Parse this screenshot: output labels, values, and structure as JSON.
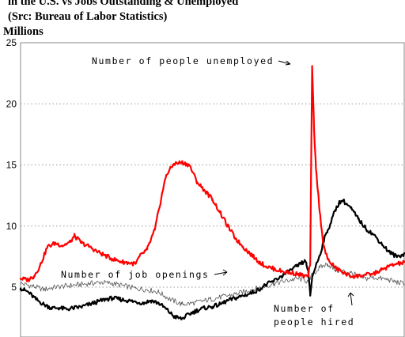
{
  "chart_data": {
    "type": "line",
    "title_lines": [
      "in the U.S. vs Jobs Outstanding & Unemployed",
      " (Src: Bureau of Labor Statistics)"
    ],
    "ylabel": "Millions",
    "ylim": [
      2,
      25
    ],
    "yticks": [
      5,
      10,
      15,
      20,
      25
    ],
    "grid": "horizontal-dotted",
    "annotations": [
      "Number of people unemployed",
      "Number of job openings",
      "Number of",
      "people hired"
    ],
    "series": [
      {
        "key": "unemployed",
        "color": "#ff0000",
        "x": [
          0.0,
          0.02,
          0.035,
          0.05,
          0.07,
          0.09,
          0.11,
          0.13,
          0.14,
          0.16,
          0.18,
          0.2,
          0.22,
          0.24,
          0.26,
          0.28,
          0.3,
          0.31,
          0.33,
          0.35,
          0.37,
          0.38,
          0.4,
          0.42,
          0.44,
          0.46,
          0.48,
          0.5,
          0.52,
          0.54,
          0.56,
          0.58,
          0.6,
          0.62,
          0.64,
          0.66,
          0.68,
          0.7,
          0.72,
          0.74,
          0.75,
          0.755,
          0.76,
          0.765,
          0.77,
          0.78,
          0.79,
          0.8,
          0.82,
          0.84,
          0.86,
          0.88,
          0.9,
          0.92,
          0.94,
          0.96,
          0.98,
          1.0
        ],
        "values": [
          5.7,
          5.6,
          5.9,
          6.7,
          8.3,
          8.6,
          8.4,
          8.7,
          9.2,
          8.6,
          8.3,
          7.9,
          7.6,
          7.3,
          7.1,
          7.0,
          6.9,
          7.5,
          8.1,
          9.7,
          12.8,
          14.2,
          15.1,
          15.2,
          15.0,
          13.6,
          12.9,
          12.2,
          11.1,
          10.0,
          9.0,
          8.3,
          7.7,
          7.1,
          6.7,
          6.5,
          6.3,
          6.2,
          6.1,
          5.9,
          5.9,
          7.0,
          23.1,
          18.0,
          14.7,
          11.1,
          8.4,
          7.3,
          6.6,
          6.2,
          5.9,
          5.9,
          6.0,
          6.1,
          6.4,
          6.7,
          6.9,
          7.0
        ]
      },
      {
        "key": "openings",
        "color": "#555555",
        "x": [
          0.0,
          0.03,
          0.06,
          0.09,
          0.12,
          0.15,
          0.18,
          0.21,
          0.24,
          0.27,
          0.3,
          0.33,
          0.36,
          0.39,
          0.42,
          0.45,
          0.48,
          0.51,
          0.54,
          0.57,
          0.6,
          0.63,
          0.66,
          0.69,
          0.72,
          0.74,
          0.75,
          0.76,
          0.78,
          0.8,
          0.82,
          0.84,
          0.86,
          0.88,
          0.9,
          0.92,
          0.94,
          0.96,
          0.98,
          1.0
        ],
        "values": [
          5.3,
          5.1,
          4.8,
          5.0,
          5.1,
          5.2,
          5.3,
          5.4,
          5.3,
          5.1,
          4.9,
          4.8,
          4.6,
          4.0,
          3.6,
          3.7,
          3.9,
          4.1,
          4.3,
          4.5,
          4.8,
          5.0,
          5.3,
          5.5,
          5.7,
          5.6,
          5.4,
          6.0,
          6.6,
          6.9,
          6.4,
          6.3,
          6.2,
          5.9,
          5.7,
          5.8,
          5.7,
          5.6,
          5.4,
          5.3
        ]
      },
      {
        "key": "hired",
        "color": "#000000",
        "x": [
          0.0,
          0.02,
          0.04,
          0.06,
          0.08,
          0.1,
          0.12,
          0.14,
          0.16,
          0.18,
          0.2,
          0.22,
          0.24,
          0.26,
          0.28,
          0.3,
          0.32,
          0.34,
          0.36,
          0.38,
          0.4,
          0.42,
          0.44,
          0.46,
          0.48,
          0.5,
          0.52,
          0.54,
          0.56,
          0.58,
          0.6,
          0.62,
          0.64,
          0.66,
          0.68,
          0.7,
          0.72,
          0.74,
          0.745,
          0.75,
          0.755,
          0.76,
          0.77,
          0.78,
          0.79,
          0.8,
          0.81,
          0.82,
          0.83,
          0.84,
          0.86,
          0.88,
          0.9,
          0.92,
          0.94,
          0.96,
          0.98,
          1.0
        ],
        "values": [
          4.9,
          4.6,
          4.0,
          3.6,
          3.3,
          3.3,
          3.2,
          3.3,
          3.4,
          3.6,
          3.8,
          4.0,
          4.1,
          4.0,
          3.9,
          3.8,
          3.7,
          3.9,
          3.7,
          3.2,
          2.6,
          2.4,
          2.8,
          3.1,
          3.3,
          3.4,
          3.6,
          3.9,
          4.1,
          4.3,
          4.5,
          4.8,
          5.2,
          5.5,
          5.9,
          6.3,
          6.7,
          7.1,
          7.0,
          6.2,
          4.3,
          5.8,
          6.8,
          7.6,
          8.8,
          9.6,
          10.4,
          11.3,
          11.9,
          12.1,
          11.5,
          10.6,
          9.8,
          9.3,
          8.6,
          7.9,
          7.5,
          7.7
        ]
      }
    ]
  }
}
